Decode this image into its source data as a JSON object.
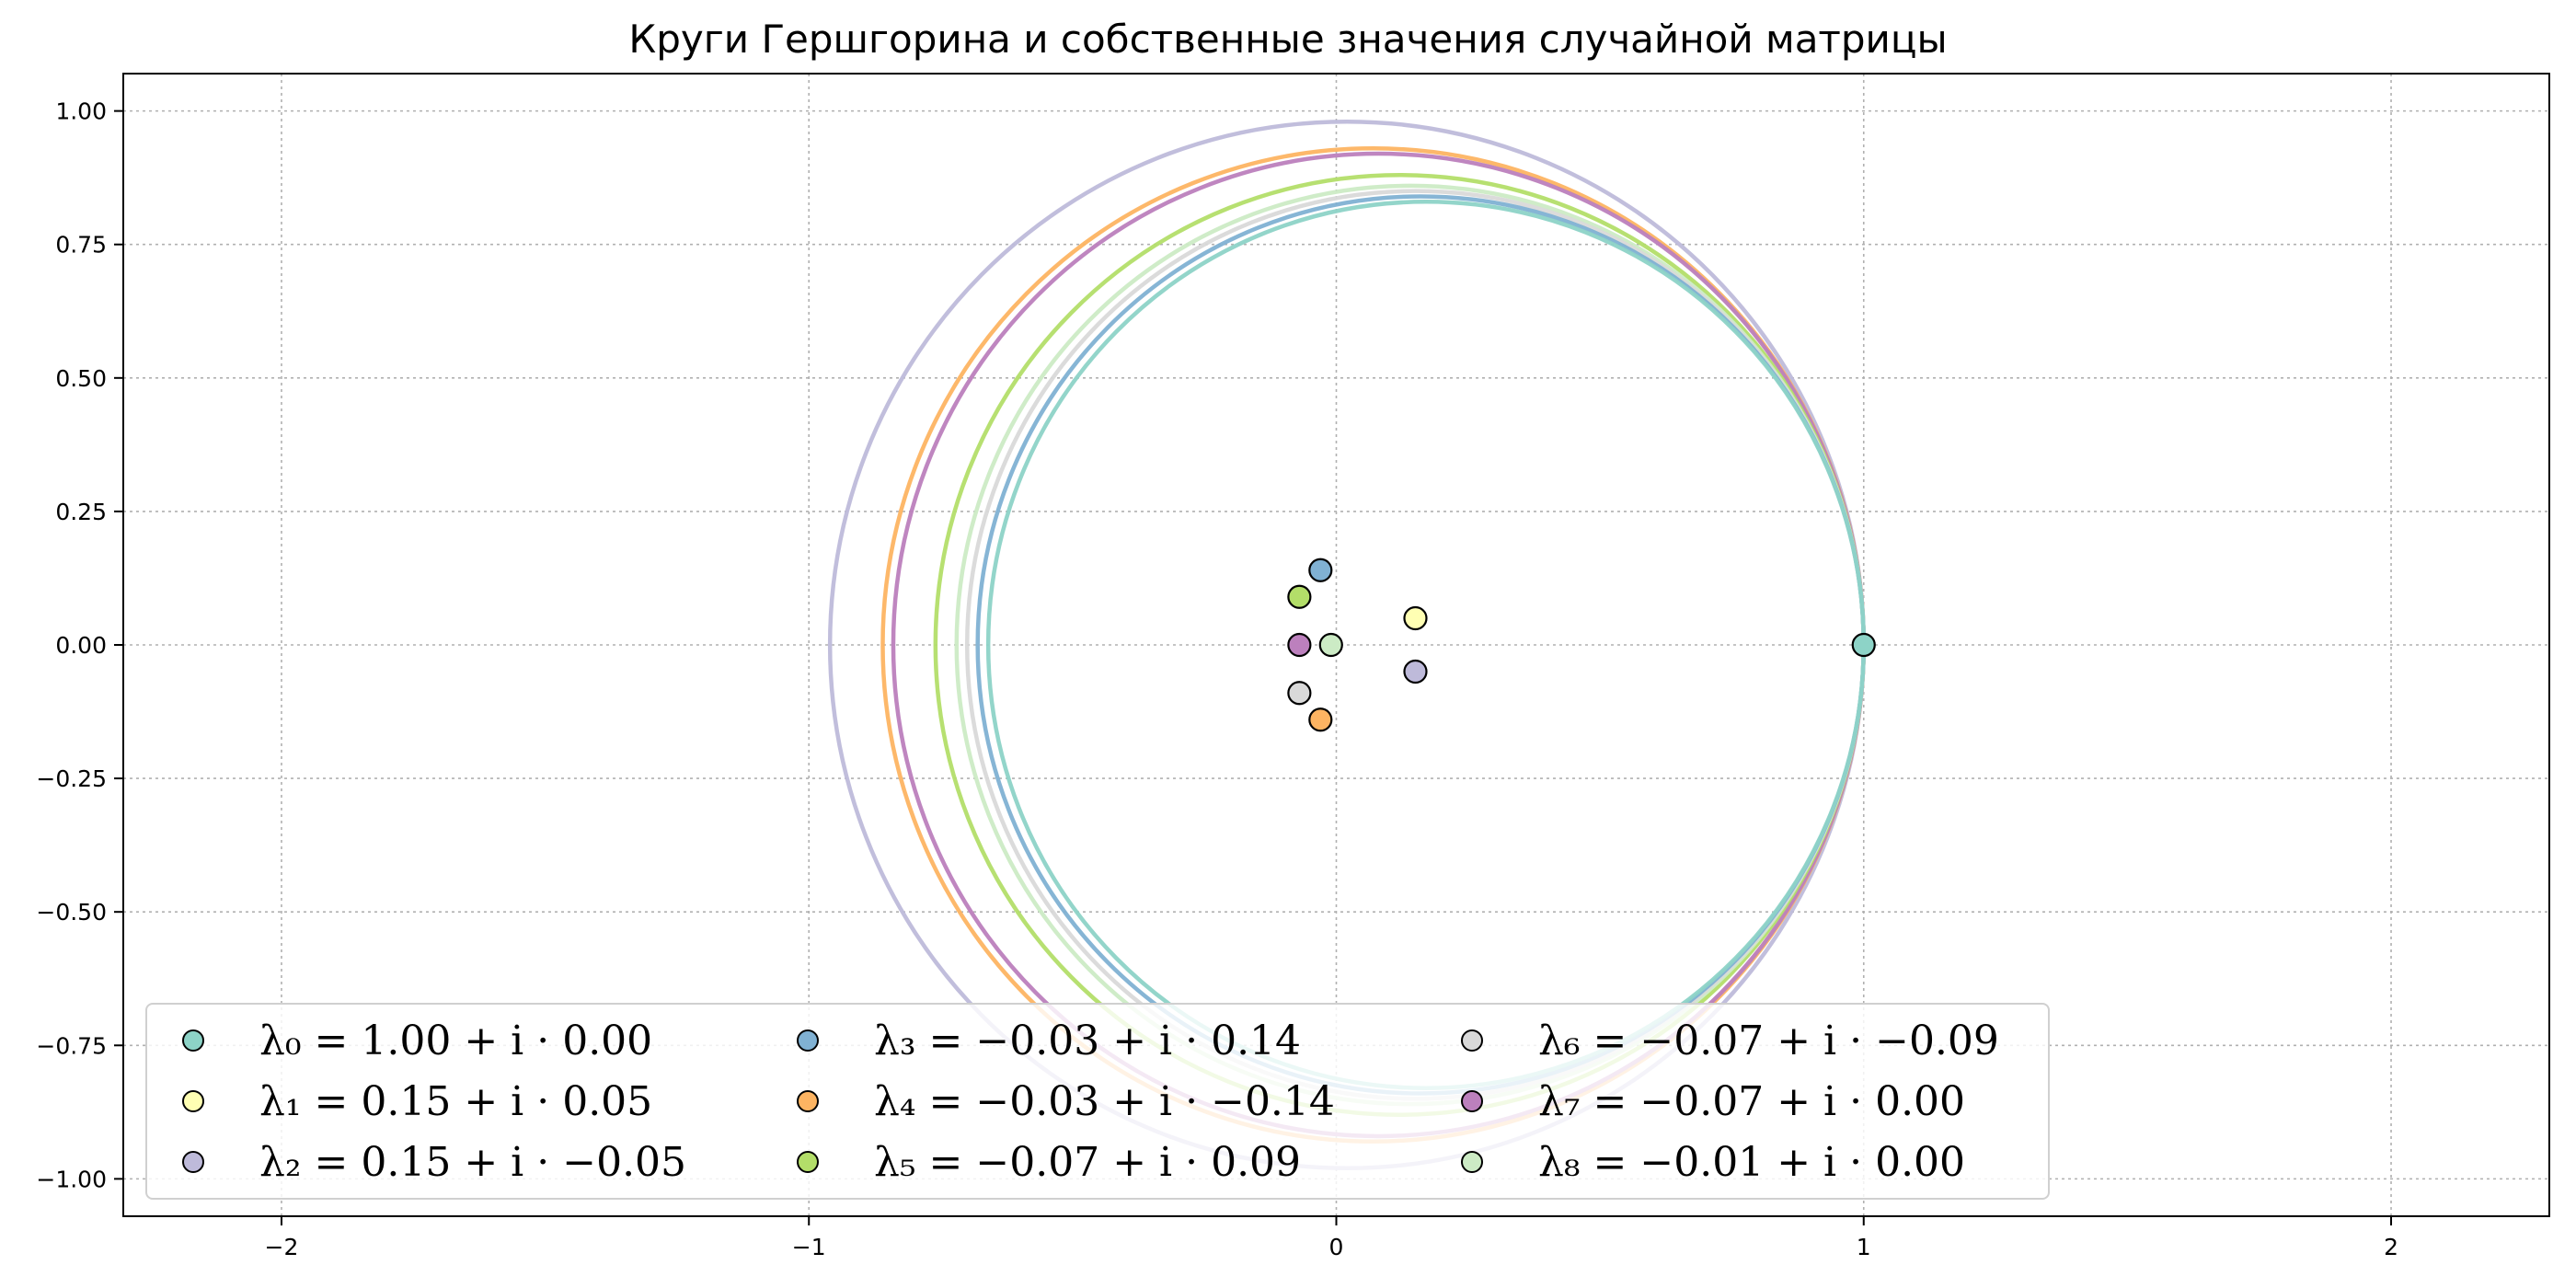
{
  "chart_data": {
    "type": "scatter",
    "title": "Круги Гершгорина и собственные значения случайной матрицы",
    "xlabel": "",
    "ylabel": "",
    "xlim": [
      -2.3,
      2.3
    ],
    "ylim": [
      -1.07,
      1.07
    ],
    "grid": true,
    "legend_placement": "lower-center",
    "x_ticks": [
      {
        "value": -2,
        "label": "−2"
      },
      {
        "value": -1,
        "label": "−1"
      },
      {
        "value": 0,
        "label": "0"
      },
      {
        "value": 1,
        "label": "1"
      },
      {
        "value": 2,
        "label": "2"
      }
    ],
    "y_ticks": [
      {
        "value": 1.0,
        "label": "1.00"
      },
      {
        "value": 0.75,
        "label": "0.75"
      },
      {
        "value": 0.5,
        "label": "0.50"
      },
      {
        "value": 0.25,
        "label": "0.25"
      },
      {
        "value": 0.0,
        "label": "0.00"
      },
      {
        "value": -0.25,
        "label": "−0.25"
      },
      {
        "value": -0.5,
        "label": "−0.50"
      },
      {
        "value": -0.75,
        "label": "−0.75"
      },
      {
        "value": -1.0,
        "label": "−1.00"
      }
    ],
    "circles": [
      {
        "center": [
          0.02,
          0.0
        ],
        "radius": 0.98,
        "color": "#bebada"
      },
      {
        "center": [
          0.07,
          0.0
        ],
        "radius": 0.93,
        "color": "#fdb462"
      },
      {
        "center": [
          0.08,
          0.0
        ],
        "radius": 0.92,
        "color": "#bc80bd"
      },
      {
        "center": [
          0.12,
          0.0
        ],
        "radius": 0.88,
        "color": "#b3de69"
      },
      {
        "center": [
          0.14,
          0.0
        ],
        "radius": 0.86,
        "color": "#ccebc5"
      },
      {
        "center": [
          0.15,
          0.0
        ],
        "radius": 0.85,
        "color": "#d9d9d9"
      },
      {
        "center": [
          0.16,
          0.0
        ],
        "radius": 0.84,
        "color": "#80b1d3"
      },
      {
        "center": [
          0.17,
          0.0
        ],
        "radius": 0.83,
        "color": "#8dd3c7"
      }
    ],
    "series": [
      {
        "name": "λ₀ = 1.00 + i · 0.00",
        "x": 1.0,
        "y": 0.0,
        "color": "#8dd3c7"
      },
      {
        "name": "λ₁ = 0.15 + i · 0.05",
        "x": 0.15,
        "y": 0.05,
        "color": "#ffffb3"
      },
      {
        "name": "λ₂ = 0.15 + i · −0.05",
        "x": 0.15,
        "y": -0.05,
        "color": "#bebada"
      },
      {
        "name": "λ₃ = −0.03 + i · 0.14",
        "x": -0.03,
        "y": 0.14,
        "color": "#80b1d3"
      },
      {
        "name": "λ₄ = −0.03 + i · −0.14",
        "x": -0.03,
        "y": -0.14,
        "color": "#fdb462"
      },
      {
        "name": "λ₅ = −0.07 + i · 0.09",
        "x": -0.07,
        "y": 0.09,
        "color": "#b3de69"
      },
      {
        "name": "λ₆ = −0.07 + i · −0.09",
        "x": -0.07,
        "y": -0.09,
        "color": "#d9d9d9"
      },
      {
        "name": "λ₇ = −0.07 + i · 0.00",
        "x": -0.07,
        "y": 0.0,
        "color": "#bc80bd"
      },
      {
        "name": "λ₈ = −0.01 + i · 0.00",
        "x": -0.01,
        "y": 0.0,
        "color": "#ccebc5"
      }
    ]
  }
}
